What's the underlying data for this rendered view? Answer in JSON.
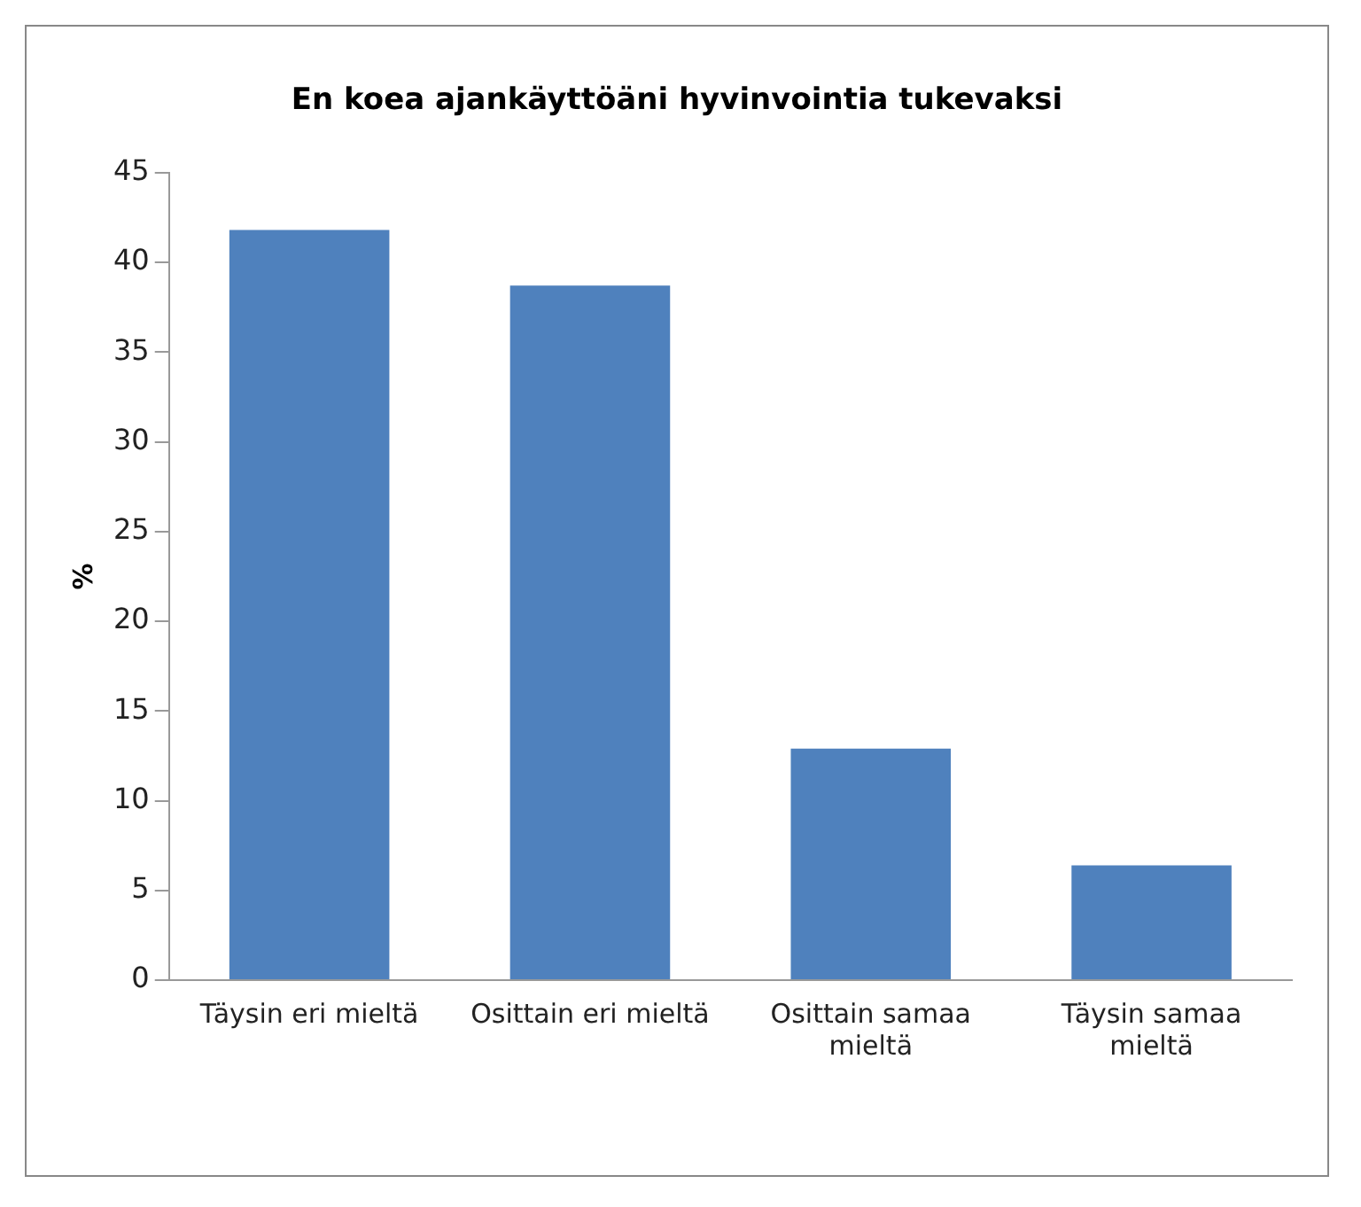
{
  "chart_data": {
    "type": "bar",
    "title": "En koea ajankäyttöäni hyvinvointia tukevaksi",
    "ylabel": "%",
    "categories": [
      "Täysin eri mieltä",
      "Osittain eri mieltä",
      "Osittain samaa mieltä",
      "Täysin samaa mieltä"
    ],
    "values": [
      41.8,
      38.7,
      12.9,
      6.4
    ],
    "color": "#4f81bd",
    "ylim": [
      0,
      45
    ],
    "yticks": [
      0,
      5,
      10,
      15,
      20,
      25,
      30,
      35,
      40,
      45
    ],
    "grid": false,
    "legend": false
  }
}
